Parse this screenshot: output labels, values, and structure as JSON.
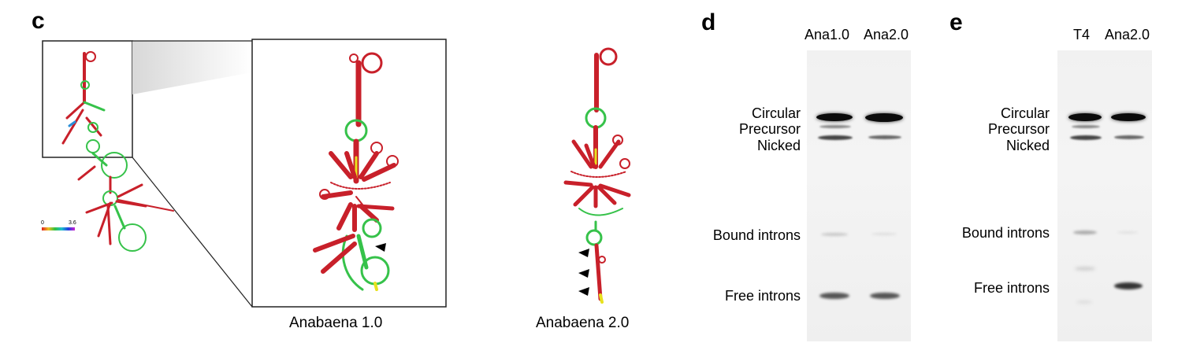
{
  "panels": {
    "c": {
      "letter": "c",
      "scale_bar": {
        "min_label": "0",
        "max_label": "3.6"
      },
      "captions": [
        "Anabaena 1.0",
        "Anabaena 2.0"
      ]
    },
    "d": {
      "letter": "d",
      "lanes": [
        "Ana1.0",
        "Ana2.0"
      ],
      "band_labels": {
        "circular": "Circular",
        "precursor": "Precursor",
        "nicked": "Nicked",
        "bound": "Bound introns",
        "free": "Free introns"
      }
    },
    "e": {
      "letter": "e",
      "lanes": [
        "T4",
        "Ana2.0"
      ],
      "band_labels": {
        "circular": "Circular",
        "precursor": "Precursor",
        "nicked": "Nicked",
        "bound": "Bound introns",
        "free": "Free introns"
      }
    }
  },
  "colors": {
    "paired": "#c8202a",
    "unpaired_high": "#e8e21e",
    "unpaired_mid": "#36c24a",
    "low": "#2a8fd8",
    "gel_bg": "#f2f2f2",
    "band_dark": "#111111"
  }
}
